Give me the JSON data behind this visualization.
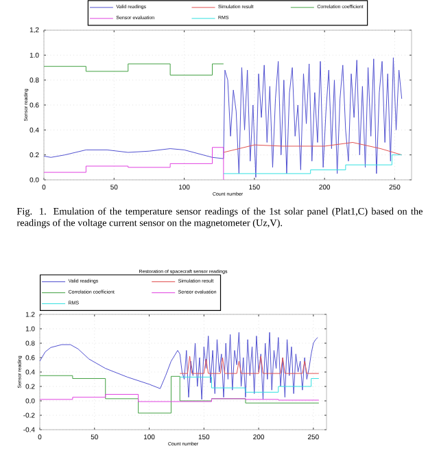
{
  "chart_data": [
    {
      "type": "line",
      "xlabel": "Count number",
      "ylabel": "Sensor reading",
      "legend": "top",
      "grid": true,
      "xlim": [
        0,
        262
      ],
      "xticks": [
        0,
        50,
        100,
        150,
        200,
        250
      ],
      "ylim": [
        0,
        1.2
      ],
      "yticks": [
        {
          "value": 0,
          "label": "0.0"
        },
        {
          "value": 0.2,
          "label": "0.2"
        },
        {
          "value": 0.4,
          "label": "0.4"
        },
        {
          "value": 0.6,
          "label": "0.6"
        },
        {
          "value": 0.8,
          "label": "0.8"
        },
        {
          "value": 1,
          "label": "1.0"
        },
        {
          "value": 1.2,
          "label": "1,2"
        }
      ],
      "annotations": [
        "Fig. 1.  Emulation of the temperature sensor readings of the 1st solar panel (Plat1,C) based on the readings of the voltage current sensor on the magnetometer (Uz,V)."
      ],
      "series": [
        {
          "name": "Valid readings",
          "color": "#5050d0",
          "x": [
            0,
            5,
            15,
            30,
            45,
            60,
            75,
            90,
            100,
            120,
            128,
            129,
            131,
            133,
            135,
            137,
            139,
            141,
            143,
            145,
            147,
            149,
            151,
            153,
            155,
            157,
            159,
            161,
            163,
            165,
            167,
            169,
            171,
            173,
            175,
            177,
            179,
            181,
            183,
            185,
            187,
            189,
            191,
            193,
            195,
            197,
            199,
            201,
            203,
            205,
            207,
            209,
            211,
            213,
            215,
            217,
            219,
            221,
            223,
            225,
            227,
            229,
            231,
            233,
            235,
            237,
            239,
            241,
            243,
            245,
            247,
            249,
            251,
            253,
            255
          ],
          "values": [
            0.19,
            0.18,
            0.2,
            0.24,
            0.24,
            0.22,
            0.23,
            0.25,
            0.24,
            0.18,
            0.17,
            0.88,
            0.8,
            0.35,
            0.72,
            0.55,
            0.05,
            0.9,
            0.4,
            0.88,
            0.15,
            0.6,
            0.02,
            0.85,
            0.5,
            0.92,
            0.3,
            0.75,
            0.1,
            0.65,
            0.95,
            0.2,
            0.8,
            0.05,
            0.7,
            0.9,
            0.35,
            0.6,
            0.08,
            0.85,
            0.45,
            0.93,
            0.15,
            0.7,
            0.3,
            0.95,
            0.1,
            0.55,
            0.88,
            0.25,
            0.8,
            0.05,
            0.65,
            0.92,
            0.4,
            0.15,
            0.85,
            0.5,
            0.96,
            0.2,
            0.75,
            0.1,
            0.9,
            0.35,
            0.97,
            0.05,
            0.7,
            0.95,
            0.3,
            0.85,
            0.15,
            0.98,
            0.4,
            0.88,
            0.65
          ]
        },
        {
          "name": "Simulation result",
          "color": "#e05050",
          "x": [
            128,
            150,
            170,
            200,
            220,
            240,
            255
          ],
          "values": [
            0.22,
            0.28,
            0.27,
            0.27,
            0.3,
            0.25,
            0.2
          ]
        },
        {
          "name": "Correlation coefficient",
          "color": "#40a040",
          "x": [
            0,
            30,
            30,
            60,
            60,
            90,
            90,
            120,
            120,
            128
          ],
          "values": [
            0.91,
            0.91,
            0.87,
            0.87,
            0.93,
            0.93,
            0.84,
            0.84,
            0.93,
            0.93
          ]
        },
        {
          "name": "Sensor evaluation",
          "color": "#e040e0",
          "x": [
            0,
            30,
            30,
            60,
            60,
            90,
            90,
            120,
            120,
            128,
            128
          ],
          "values": [
            0.06,
            0.06,
            0.11,
            0.11,
            0.1,
            0.1,
            0.13,
            0.13,
            0.26,
            0.26,
            0
          ]
        },
        {
          "name": "RMS",
          "color": "#30e0e0",
          "x": [
            128,
            190,
            190,
            215,
            215,
            248,
            248,
            255
          ],
          "values": [
            0.05,
            0.05,
            0.08,
            0.08,
            0.12,
            0.12,
            0.2,
            0.2
          ]
        }
      ]
    },
    {
      "type": "line",
      "title": "Restoration of spacecraft sensor readings",
      "xlabel": "Count number",
      "ylabel": "Sensor reading",
      "legend": "top left",
      "grid": true,
      "xlim": [
        0,
        262
      ],
      "xticks": [
        0,
        50,
        100,
        150,
        200,
        250
      ],
      "ylim": [
        -0.4,
        1.2
      ],
      "yticks": [
        {
          "value": -0.4,
          "label": "-0.4"
        },
        {
          "value": -0.2,
          "label": "-0.2"
        },
        {
          "value": 0,
          "label": "0.0"
        },
        {
          "value": 0.2,
          "label": "0.2"
        },
        {
          "value": 0.4,
          "label": "0.4"
        },
        {
          "value": 0.6,
          "label": "0.6"
        },
        {
          "value": 0.8,
          "label": "0.8"
        },
        {
          "value": 1,
          "label": "1.0"
        },
        {
          "value": 1.2,
          "label": "1.2"
        }
      ],
      "series": [
        {
          "name": "Valid readings",
          "color": "#5050d0",
          "x": [
            0,
            5,
            10,
            20,
            28,
            35,
            45,
            60,
            80,
            100,
            110,
            115,
            120,
            126,
            128,
            130,
            132,
            134,
            136,
            138,
            140,
            142,
            144,
            146,
            148,
            150,
            152,
            154,
            156,
            158,
            160,
            162,
            164,
            166,
            168,
            170,
            172,
            174,
            176,
            178,
            180,
            182,
            184,
            186,
            188,
            190,
            192,
            194,
            196,
            198,
            200,
            202,
            204,
            206,
            208,
            210,
            212,
            214,
            216,
            218,
            220,
            222,
            224,
            226,
            228,
            230,
            232,
            234,
            236,
            238,
            240,
            242,
            244,
            246,
            248,
            250,
            252,
            254
          ],
          "values": [
            0.55,
            0.68,
            0.74,
            0.78,
            0.78,
            0.72,
            0.58,
            0.45,
            0.33,
            0.23,
            0.17,
            0.35,
            0.55,
            0.7,
            0.65,
            0.4,
            0.3,
            0.7,
            0.05,
            0.55,
            0.35,
            0.8,
            0.2,
            0.6,
            0.02,
            0.75,
            0.45,
            0.9,
            0.25,
            0.7,
            0.1,
            0.85,
            0.4,
            0.65,
            0.05,
            0.8,
            0.3,
            0.92,
            0.15,
            0.7,
            0.5,
            0.95,
            0.2,
            0.6,
            0.05,
            0.85,
            0.35,
            0.75,
            0.1,
            0.9,
            0.4,
            0.65,
            0.02,
            0.8,
            0.3,
            0.95,
            0.15,
            0.7,
            0.45,
            0.88,
            0.2,
            0.6,
            0.05,
            0.85,
            0.35,
            0.75,
            0.1,
            0.65,
            0.4,
            0.55,
            0.15,
            0.6,
            0.3,
            0.45,
            0.65,
            0.8,
            0.85,
            0.88
          ]
        },
        {
          "name": "Simulation result",
          "color": "#e05050",
          "x": [
            128,
            135,
            137,
            139,
            150,
            152,
            154,
            165,
            167,
            169,
            180,
            182,
            184,
            200,
            202,
            204,
            220,
            222,
            224,
            240,
            242,
            244,
            255
          ],
          "values": [
            0.38,
            0.38,
            0.62,
            0.38,
            0.38,
            0.58,
            0.38,
            0.38,
            0.6,
            0.38,
            0.38,
            0.55,
            0.38,
            0.38,
            0.62,
            0.38,
            0.38,
            0.6,
            0.38,
            0.38,
            0.55,
            0.38,
            0.38
          ]
        },
        {
          "name": "Correlation coefficient",
          "color": "#40a040",
          "x": [
            0,
            30,
            30,
            60,
            60,
            90,
            90,
            120,
            120,
            128,
            128,
            157,
            157,
            188,
            188,
            255
          ],
          "values": [
            0.35,
            0.35,
            0.31,
            0.31,
            0.03,
            0.03,
            -0.17,
            -0.17,
            0.34,
            0.34,
            0,
            0,
            0.03,
            0.03,
            -0.03,
            -0.03
          ]
        },
        {
          "name": "Sensor evaluation",
          "color": "#e040e0",
          "x": [
            0,
            30,
            30,
            60,
            60,
            90,
            90,
            157,
            157,
            188,
            188,
            218,
            218,
            255
          ],
          "values": [
            0.02,
            0.02,
            0.05,
            0.05,
            0.09,
            0.09,
            -0.01,
            -0.01,
            0.03,
            0.03,
            0.02,
            0.02,
            0.01,
            0.01
          ]
        },
        {
          "name": "RMS",
          "color": "#30e0e0",
          "x": [
            128,
            157,
            157,
            188,
            188,
            218,
            218,
            248,
            248,
            255
          ],
          "values": [
            0.33,
            0.33,
            0.18,
            0.18,
            0.12,
            0.12,
            0.2,
            0.2,
            0.31,
            0.31
          ]
        }
      ]
    }
  ]
}
